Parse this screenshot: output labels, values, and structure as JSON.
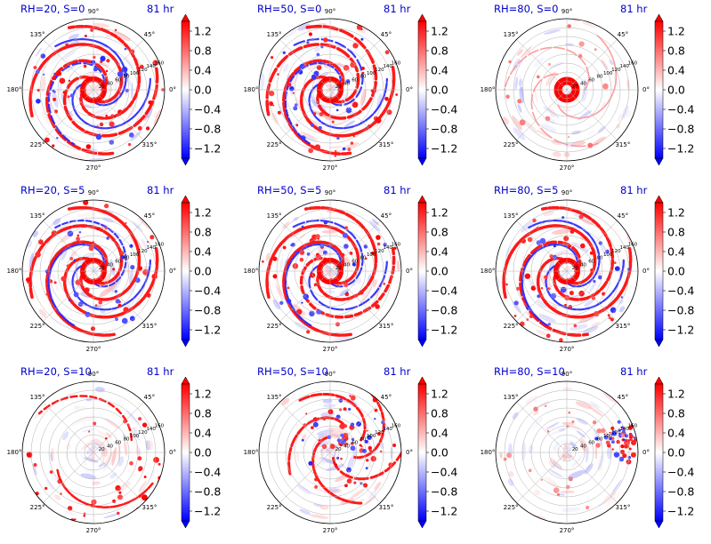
{
  "figure": {
    "time_label": "81 hr",
    "angle_ticks": [
      "0°",
      "45°",
      "90°",
      "135°",
      "180°",
      "225°",
      "270°",
      "315°"
    ],
    "radial_ticks": [
      "20",
      "40",
      "60",
      "80",
      "100",
      "120",
      "140",
      "160"
    ],
    "colorbar_ticks": [
      "1.2",
      "0.8",
      "0.4",
      "0.0",
      "−0.4",
      "−0.8",
      "−1.2"
    ],
    "colorbar_range": [
      -1.4,
      1.4
    ],
    "colormap": "bwr",
    "colors": {
      "positive": "#ff0000",
      "negative": "#0000ff",
      "neutral": "#ffffff",
      "title": "#0000cc"
    }
  },
  "chart_data": [
    {
      "type": "heatmap",
      "projection": "polar",
      "title": "RH=20, S=0",
      "time": "81 hr",
      "rmax": 160,
      "pattern": "spiral"
    },
    {
      "type": "heatmap",
      "projection": "polar",
      "title": "RH=50, S=0",
      "time": "81 hr",
      "rmax": 160,
      "pattern": "spiral"
    },
    {
      "type": "heatmap",
      "projection": "polar",
      "title": "RH=80, S=0",
      "time": "81 hr",
      "rmax": 160,
      "pattern": "eye"
    },
    {
      "type": "heatmap",
      "projection": "polar",
      "title": "RH=20, S=5",
      "time": "81 hr",
      "rmax": 160,
      "pattern": "spiral"
    },
    {
      "type": "heatmap",
      "projection": "polar",
      "title": "RH=50, S=5",
      "time": "81 hr",
      "rmax": 160,
      "pattern": "spiral-shear"
    },
    {
      "type": "heatmap",
      "projection": "polar",
      "title": "RH=80, S=5",
      "time": "81 hr",
      "rmax": 160,
      "pattern": "spiral-shear"
    },
    {
      "type": "heatmap",
      "projection": "polar",
      "title": "RH=20, S=10",
      "time": "81 hr",
      "rmax": 160,
      "pattern": "weak"
    },
    {
      "type": "heatmap",
      "projection": "polar",
      "title": "RH=50, S=10",
      "time": "81 hr",
      "rmax": 160,
      "pattern": "sheared"
    },
    {
      "type": "heatmap",
      "projection": "polar",
      "title": "RH=80, S=10",
      "time": "81 hr",
      "rmax": 160,
      "pattern": "sheared-edge"
    }
  ]
}
